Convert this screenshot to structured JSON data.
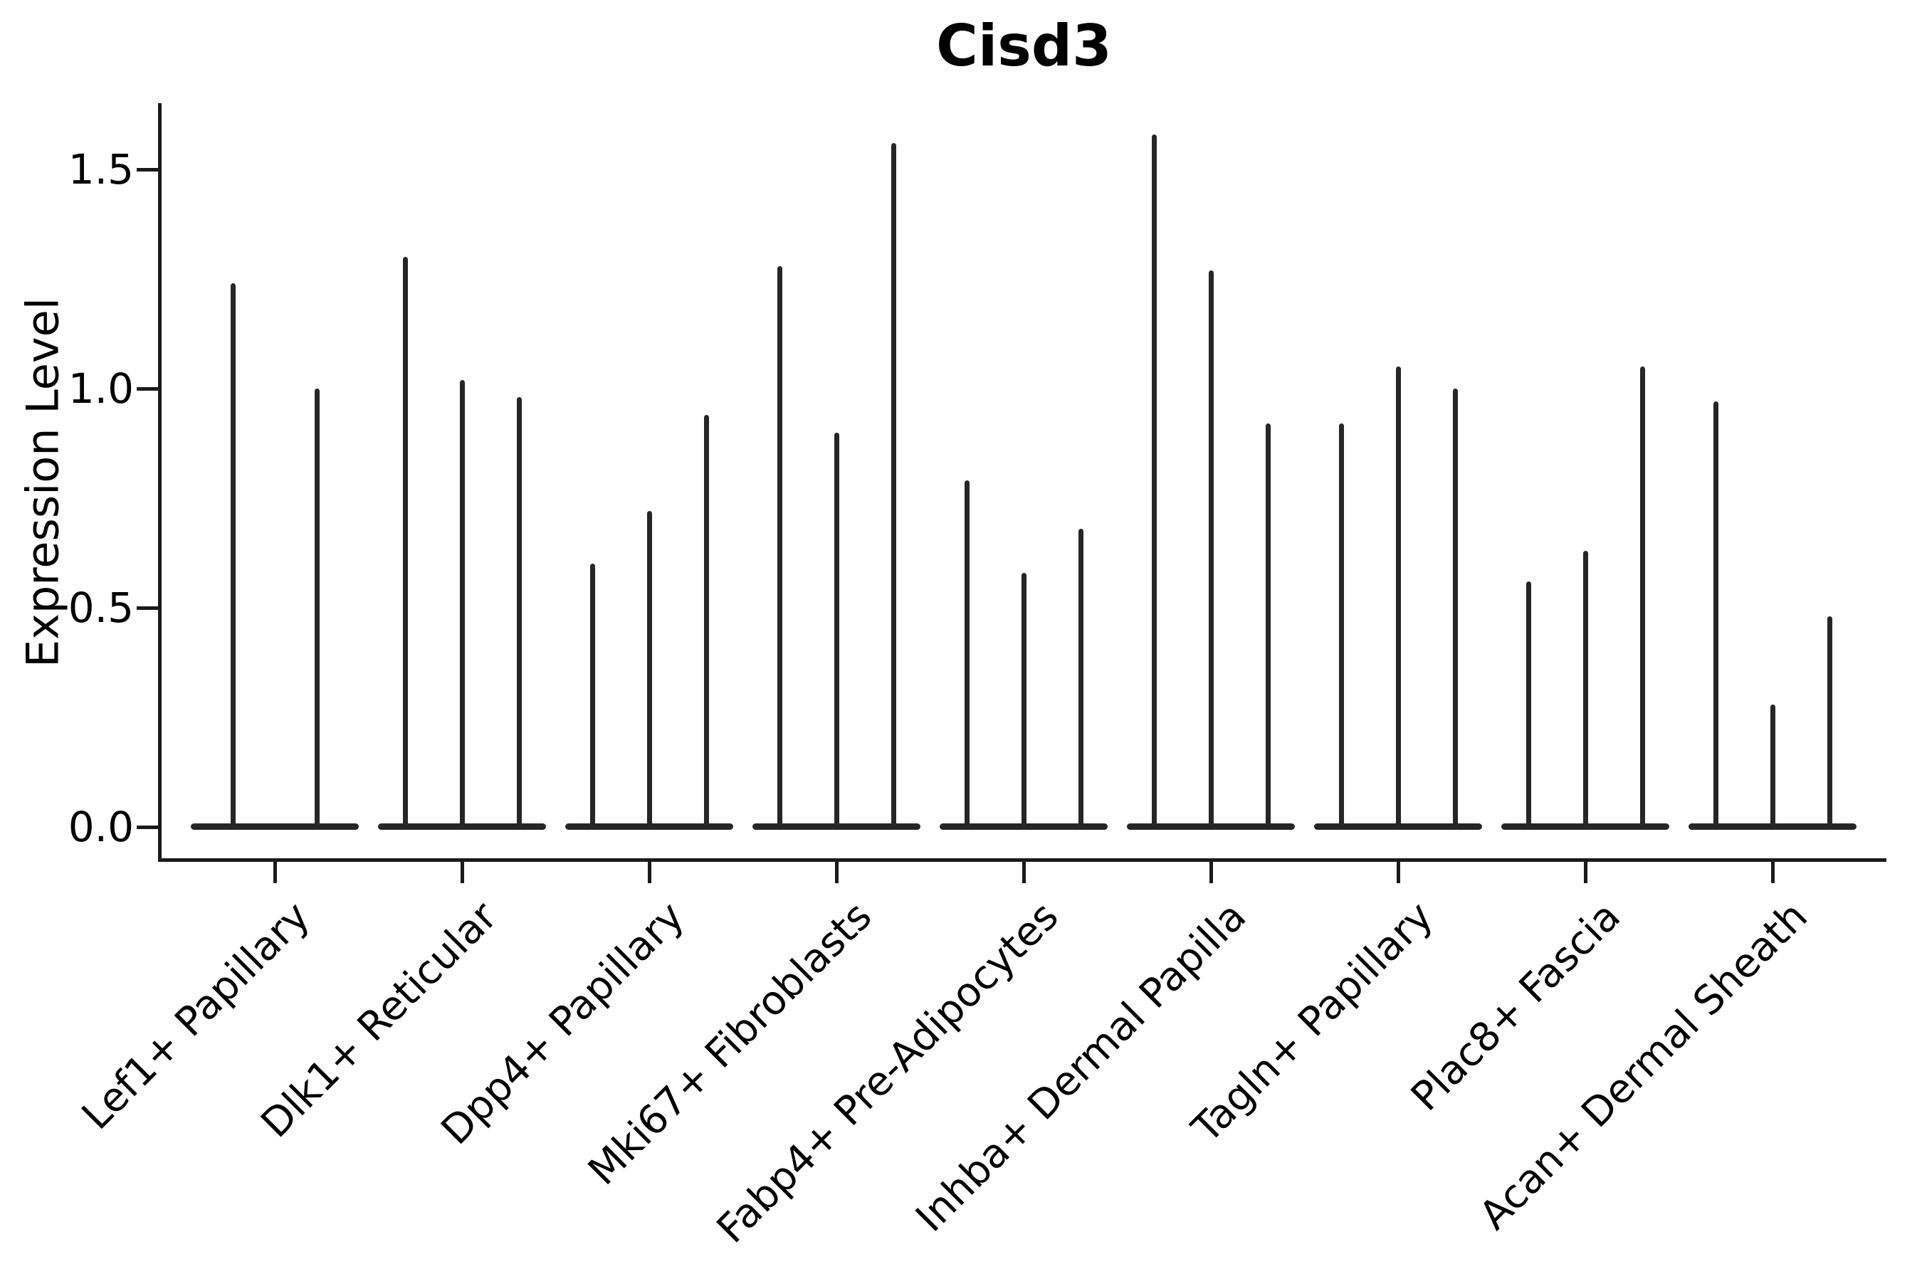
{
  "chart_data": {
    "type": "violin",
    "title": "Cisd3",
    "xlabel": "",
    "ylabel": "Expression Level",
    "yticks": [
      0.0,
      0.5,
      1.0,
      1.5
    ],
    "ylim": [
      -0.08,
      1.65
    ],
    "grid": false,
    "legend": "none",
    "spines": [
      "left",
      "bottom"
    ],
    "x_tick_label_rotation": 45,
    "style_note": "single-cell expression violins collapsed at 0 with thin vertical spikes up to each group's max expression; no jitter points",
    "categories": [
      "Lef1+ Papillary",
      "Dlk1+ Reticular",
      "Dpp4+ Papillary",
      "Mki67+ Fibroblasts",
      "Fabp4+ Pre-Adipocytes",
      "Inhba+ Dermal Papilla",
      "Tagln+ Papillary",
      "Plac8+ Fascia",
      "Acan+ Dermal Sheath"
    ],
    "series": [
      {
        "category": "Lef1+ Papillary",
        "violin_max": [
          1.24,
          1.0
        ]
      },
      {
        "category": "Dlk1+ Reticular",
        "violin_max": [
          1.3,
          1.02,
          0.98
        ]
      },
      {
        "category": "Dpp4+ Papillary",
        "violin_max": [
          0.6,
          0.72,
          0.94
        ]
      },
      {
        "category": "Mki67+ Fibroblasts",
        "violin_max": [
          1.28,
          0.9,
          1.56
        ]
      },
      {
        "category": "Fabp4+ Pre-Adipocytes",
        "violin_max": [
          0.79,
          0.58,
          0.68
        ]
      },
      {
        "category": "Inhba+ Dermal Papilla",
        "violin_max": [
          1.58,
          1.27,
          0.92
        ]
      },
      {
        "category": "Tagln+ Papillary",
        "violin_max": [
          0.92,
          1.05,
          1.0
        ]
      },
      {
        "category": "Plac8+ Fascia",
        "violin_max": [
          0.56,
          0.63,
          1.05
        ]
      },
      {
        "category": "Acan+ Dermal Sheath",
        "violin_max": [
          0.97,
          0.28,
          0.48
        ]
      }
    ],
    "colors": {
      "violin": "#262626",
      "axis": "#1a1a1a",
      "text": "#000000",
      "background": "#ffffff"
    }
  }
}
